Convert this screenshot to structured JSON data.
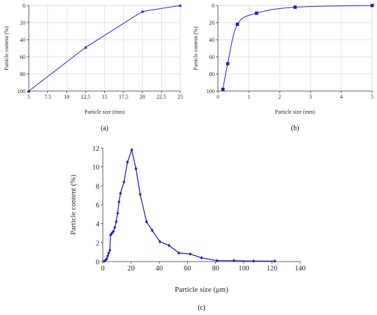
{
  "chart_data": [
    {
      "type": "line",
      "panel_label": "(a)",
      "xlabel": "Particle size (mm)",
      "ylabel": "Particle content (%)",
      "xlim": [
        5,
        25
      ],
      "ylim": [
        0,
        100
      ],
      "y_inverted": true,
      "x_ticks": [
        "5",
        "7.5",
        "10",
        "12.5",
        "15",
        "17.5",
        "20",
        "22.5",
        "25"
      ],
      "y_ticks": [
        "0",
        "20",
        "40",
        "60",
        "80",
        "100"
      ],
      "grid": true,
      "color": "#1f1fb4",
      "marker": "triangle",
      "points": [
        {
          "x": 5,
          "y": 100
        },
        {
          "x": 12.5,
          "y": 49
        },
        {
          "x": 20,
          "y": 7
        },
        {
          "x": 25,
          "y": 0
        }
      ]
    },
    {
      "type": "scatter",
      "panel_label": "(b)",
      "xlabel": "Particle size (mm)",
      "ylabel": "Particle content (%)",
      "xlim": [
        0,
        5
      ],
      "ylim": [
        0,
        100
      ],
      "y_inverted": true,
      "x_ticks": [
        "0",
        "1",
        "2",
        "3",
        "4",
        "5"
      ],
      "y_ticks": [
        "0",
        "20",
        "40",
        "60",
        "80",
        "100"
      ],
      "grid": true,
      "color": "#1f1fb4",
      "marker": "square",
      "points": [
        {
          "x": 0.16,
          "y": 98
        },
        {
          "x": 0.315,
          "y": 68
        },
        {
          "x": 0.63,
          "y": 22
        },
        {
          "x": 1.25,
          "y": 9
        },
        {
          "x": 2.5,
          "y": 2
        },
        {
          "x": 5,
          "y": 0
        }
      ]
    },
    {
      "type": "line",
      "panel_label": "(c)",
      "xlabel": "Particle size (μm)",
      "ylabel": "Particle content (%)",
      "xlim": [
        0,
        140
      ],
      "ylim": [
        0,
        12
      ],
      "x_ticks": [
        "0",
        "20",
        "40",
        "60",
        "80",
        "100",
        "120",
        "140"
      ],
      "y_ticks": [
        "0",
        "2",
        "4",
        "6",
        "8",
        "10",
        "12"
      ],
      "grid": false,
      "color": "#1f1fb4",
      "marker": "diamond",
      "points": [
        {
          "x": 1,
          "y": 0.05
        },
        {
          "x": 2,
          "y": 0.15
        },
        {
          "x": 2.8,
          "y": 0.3
        },
        {
          "x": 3.5,
          "y": 0.6
        },
        {
          "x": 4.2,
          "y": 0.9
        },
        {
          "x": 5,
          "y": 1.2
        },
        {
          "x": 5.5,
          "y": 2.8
        },
        {
          "x": 6.5,
          "y": 3.0
        },
        {
          "x": 7.5,
          "y": 3.2
        },
        {
          "x": 8.5,
          "y": 3.6
        },
        {
          "x": 9.5,
          "y": 4.2
        },
        {
          "x": 10.5,
          "y": 5.1
        },
        {
          "x": 11.5,
          "y": 6.3
        },
        {
          "x": 12.5,
          "y": 7.2
        },
        {
          "x": 15,
          "y": 8.4
        },
        {
          "x": 17.5,
          "y": 10.5
        },
        {
          "x": 20.5,
          "y": 11.8
        },
        {
          "x": 23.5,
          "y": 9.8
        },
        {
          "x": 26.5,
          "y": 7.1
        },
        {
          "x": 31,
          "y": 4.2
        },
        {
          "x": 35,
          "y": 3.3
        },
        {
          "x": 40.5,
          "y": 2.1
        },
        {
          "x": 47,
          "y": 1.7
        },
        {
          "x": 54,
          "y": 0.9
        },
        {
          "x": 62,
          "y": 0.8
        },
        {
          "x": 70,
          "y": 0.4
        },
        {
          "x": 81,
          "y": 0.1
        },
        {
          "x": 93,
          "y": 0.1
        },
        {
          "x": 107,
          "y": 0.05
        },
        {
          "x": 122,
          "y": 0.05
        }
      ]
    }
  ]
}
